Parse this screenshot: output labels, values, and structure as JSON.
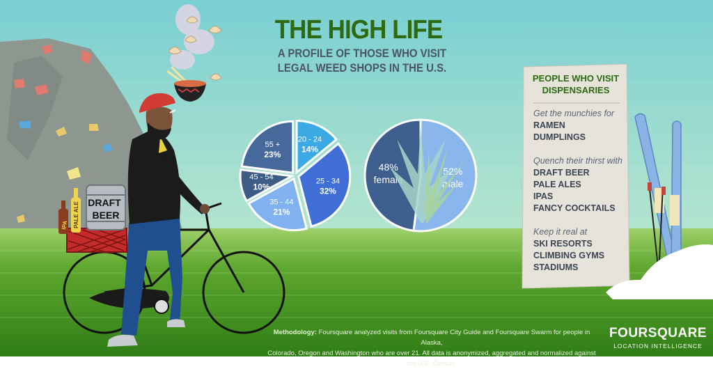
{
  "header": {
    "title": "THE HIGH LIFE",
    "subtitle_line1": "A PROFILE OF THOSE WHO VISIT",
    "subtitle_line2": "LEGAL WEED SHOPS IN THE U.S."
  },
  "colors": {
    "title_green": "#2d6a12",
    "sky_top": "#7fd0d3",
    "grass": "#4f9a24",
    "panel": "#e6e3da"
  },
  "illustration": {
    "keg_label_1": "DRAFT",
    "keg_label_2": "BEER",
    "bottle_label_1": "IPA",
    "bottle_label_2": "PALE ALE"
  },
  "panel": {
    "title_line1": "PEOPLE WHO VISIT",
    "title_line2": "DISPENSARIES",
    "sections": [
      {
        "heading": "Get the munchies for",
        "items": [
          "RAMEN",
          "DUMPLINGS"
        ]
      },
      {
        "heading": "Quench their thirst with",
        "items": [
          "DRAFT BEER",
          "PALE ALES",
          "IPAS",
          "FANCY COCKTAILS"
        ]
      },
      {
        "heading": "Keep it real at",
        "items": [
          "SKI RESORTS",
          "CLIMBING GYMS",
          "STADIUMS"
        ]
      }
    ]
  },
  "chart_data": [
    {
      "type": "pie",
      "categories": [
        "20 - 24",
        "25 - 34",
        "35 - 44",
        "45 - 54",
        "55 +"
      ],
      "values": [
        14,
        32,
        21,
        10,
        23
      ],
      "labels": [
        "14%",
        "32%",
        "21%",
        "10%",
        "23%"
      ],
      "colors": [
        "#3ba9e3",
        "#3f6fd6",
        "#7fb2ef",
        "#3e5d86",
        "#47689a"
      ]
    },
    {
      "type": "pie",
      "categories": [
        "male",
        "female"
      ],
      "values": [
        52,
        48
      ],
      "labels": [
        "52%",
        "48%"
      ],
      "colors": [
        "#8ab6ee",
        "#3e5e8e"
      ]
    }
  ],
  "footer": {
    "methodology_label": "Methodology:",
    "methodology_text_1": " Foursquare analyzed visits from Foursquare City Guide and Foursquare Swarm for people in Alaska,",
    "methodology_text_2": "Colorado, Oregon and Washington who are over 21. All data is anonymized, aggregated and normalized against the U.S. Census.",
    "brand": "FOURSQUARE",
    "brand_sub": "LOCATION INTELLIGENCE"
  }
}
